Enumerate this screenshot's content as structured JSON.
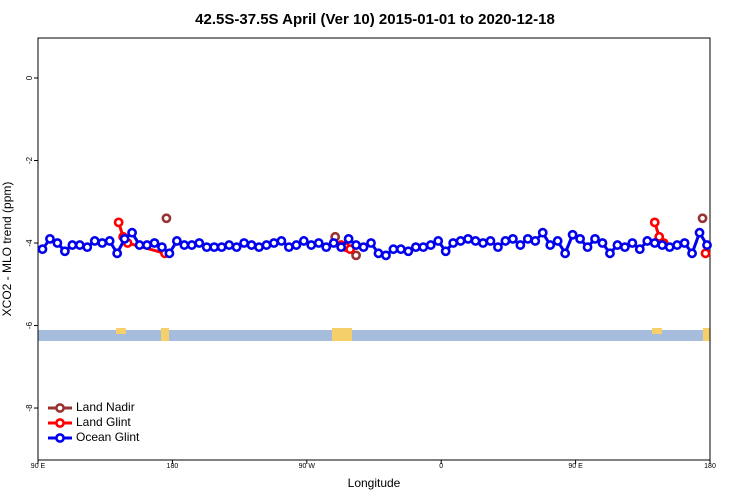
{
  "chart_data": {
    "type": "line",
    "title": "42.5S-37.5S April (Ver 10)   2015-01-01 to 2020-12-18",
    "x_label": "Longitude",
    "y_label": "XCO2 - MLO trend (ppm)",
    "xlim": [
      90,
      540
    ],
    "xticks": [
      {
        "value": 90,
        "label": "90 E"
      },
      180,
      {
        "value": 270,
        "label": "90 W"
      },
      {
        "value": 360,
        "label": "0"
      },
      {
        "value": 450,
        "label": "90 E"
      },
      {
        "value": 540,
        "label": "180"
      }
    ],
    "ylim": [
      -9.26,
      0.97
    ],
    "yticks": [
      0,
      -2,
      -4,
      -6,
      -8
    ],
    "legend": "bottom-left",
    "series": [
      {
        "name": "Land Nadir",
        "color": "#993333",
        "line": false,
        "x": [
          176,
          289,
          303,
          535
        ],
        "values": [
          -3.4,
          -3.85,
          -4.3,
          -3.4
        ]
      },
      {
        "name": "Land Glint",
        "color": "#ff0000",
        "line": true,
        "x": [
          144,
          147,
          150,
          175,
          230,
          293,
          296,
          299,
          400,
          503,
          506,
          509,
          520,
          537
        ],
        "values": [
          -3.5,
          -3.85,
          -4.0,
          -4.25,
          null,
          -4.05,
          -4.1,
          -4.15,
          null,
          -3.5,
          -3.85,
          -4.0,
          null,
          -4.25
        ]
      },
      {
        "name": "Ocean Glint",
        "color": "#0000ee",
        "line": true,
        "x": [
          93,
          98,
          103,
          108,
          113,
          118,
          123,
          128,
          133,
          138,
          143,
          148,
          153,
          158,
          163,
          168,
          173,
          178,
          183,
          188,
          193,
          198,
          203,
          208,
          213,
          218,
          223,
          228,
          233,
          238,
          243,
          248,
          253,
          258,
          263,
          268,
          273,
          278,
          283,
          288,
          293,
          298,
          303,
          308,
          313,
          318,
          323,
          328,
          333,
          338,
          343,
          348,
          353,
          358,
          363,
          368,
          373,
          378,
          383,
          388,
          393,
          398,
          403,
          408,
          413,
          418,
          423,
          428,
          433,
          438,
          443,
          448,
          453,
          458,
          463,
          468,
          473,
          478,
          483,
          488,
          493,
          498,
          503,
          508,
          513,
          518,
          523,
          528,
          533,
          538
        ],
        "values": [
          -4.15,
          -3.9,
          -4.0,
          -4.2,
          -4.05,
          -4.05,
          -4.1,
          -3.95,
          -4.0,
          -3.95,
          -4.25,
          -3.9,
          -3.75,
          -4.05,
          -4.05,
          -4.0,
          -4.1,
          -4.25,
          -3.95,
          -4.05,
          -4.05,
          -4.0,
          -4.1,
          -4.1,
          -4.1,
          -4.05,
          -4.1,
          -4.0,
          -4.05,
          -4.1,
          -4.05,
          -4.0,
          -3.95,
          -4.1,
          -4.05,
          -3.95,
          -4.05,
          -4.0,
          -4.1,
          -4.0,
          -4.1,
          -3.9,
          -4.05,
          -4.1,
          -4.0,
          -4.25,
          -4.3,
          -4.15,
          -4.15,
          -4.2,
          -4.1,
          -4.1,
          -4.05,
          -3.95,
          -4.2,
          -4.0,
          -3.95,
          -3.9,
          -3.95,
          -4.0,
          -3.95,
          -4.1,
          -3.95,
          -3.9,
          -4.05,
          -3.9,
          -3.95,
          -3.75,
          -4.05,
          -3.95,
          -4.25,
          -3.8,
          -3.9,
          -4.1,
          -3.9,
          -4.0,
          -4.25,
          -4.05,
          -4.1,
          -4.0,
          -4.15,
          -3.95,
          -4.0,
          -4.05,
          -4.1,
          -4.05,
          -4.0,
          -4.25,
          -3.75,
          -4.05
        ]
      }
    ]
  }
}
